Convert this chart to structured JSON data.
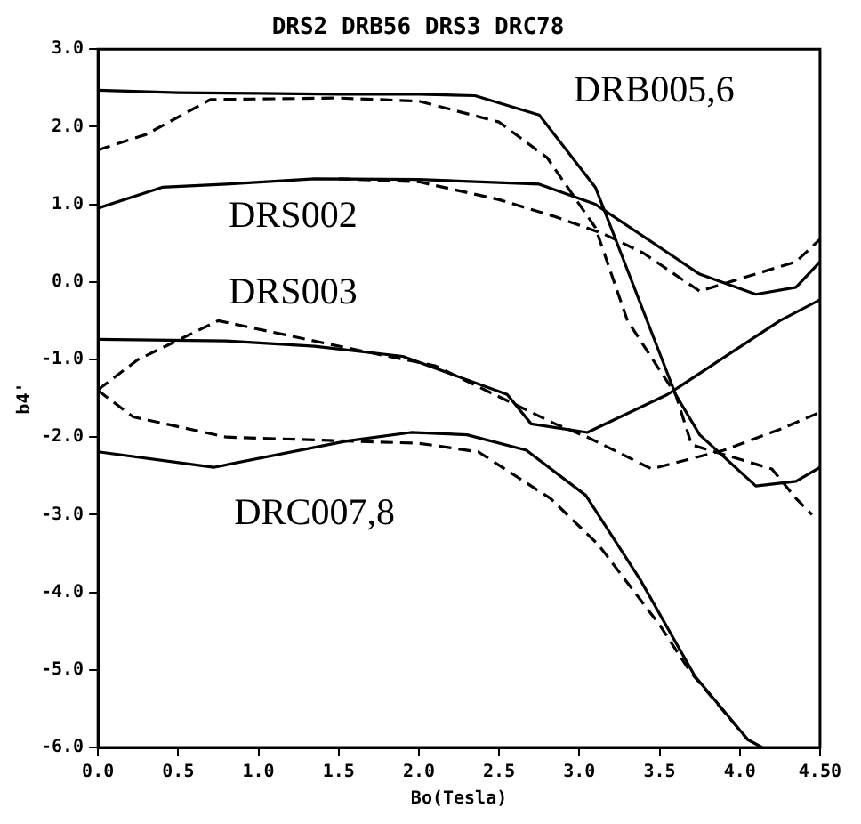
{
  "chart_data": {
    "type": "line",
    "title": "DRS2 DRB56 DRS3 DRC78",
    "xlabel": "Bo(Tesla)",
    "ylabel": "b4'",
    "xlim": [
      0,
      4.5
    ],
    "ylim": [
      -6,
      3
    ],
    "xticks": [
      {
        "value": 0,
        "label": "0.0"
      },
      {
        "value": 0.5,
        "label": "0.5"
      },
      {
        "value": 1,
        "label": "1.0"
      },
      {
        "value": 1.5,
        "label": "1.5"
      },
      {
        "value": 2,
        "label": "2.0"
      },
      {
        "value": 2.5,
        "label": "2.5"
      },
      {
        "value": 3,
        "label": "3.0"
      },
      {
        "value": 3.5,
        "label": "3.5"
      },
      {
        "value": 4,
        "label": "4.0"
      },
      {
        "value": 4.5,
        "label": "4.50"
      }
    ],
    "yticks": [
      {
        "value": 3,
        "label": "3.0"
      },
      {
        "value": 2,
        "label": "2.0"
      },
      {
        "value": 1,
        "label": "1.0"
      },
      {
        "value": 0,
        "label": "0.0"
      },
      {
        "value": -1,
        "label": "-1.0"
      },
      {
        "value": -2,
        "label": "-2.0"
      },
      {
        "value": -3,
        "label": "-3.0"
      },
      {
        "value": -4,
        "label": "-4.0"
      },
      {
        "value": -5,
        "label": "-5.0"
      },
      {
        "value": -6,
        "label": "-6.0"
      }
    ],
    "grid": false,
    "legend": false,
    "marker": "none",
    "series": [
      {
        "color": "#000000",
        "line_style": "solid",
        "x": [
          0,
          0.5,
          1,
          1.5,
          2,
          2.35,
          2.75,
          3.1,
          3.6,
          3.75,
          4.1,
          4.35,
          4.5
        ],
        "values": [
          2.47,
          2.44,
          2.43,
          2.42,
          2.42,
          2.4,
          2.15,
          1.22,
          -1.45,
          -1.97,
          -2.63,
          -2.57,
          -2.39
        ]
      },
      {
        "color": "#000000",
        "line_style": "dashed",
        "x": [
          0,
          0.3,
          0.7,
          1.5,
          2,
          2.5,
          2.8,
          3.1,
          3.3,
          3.6,
          3.7,
          4.2,
          4.35,
          4.45
        ],
        "values": [
          1.7,
          1.9,
          2.35,
          2.37,
          2.33,
          2.06,
          1.6,
          0.7,
          -0.5,
          -1.45,
          -2.1,
          -2.41,
          -2.79,
          -3
        ]
      },
      {
        "color": "#000000",
        "line_style": "solid",
        "x": [
          0,
          0.4,
          0.8,
          1.35,
          2,
          2.75,
          3.1,
          3.75,
          4.1,
          4.35,
          4.5
        ],
        "values": [
          0.95,
          1.22,
          1.26,
          1.33,
          1.32,
          1.26,
          1,
          0.1,
          -0.16,
          -0.07,
          0.26
        ]
      },
      {
        "color": "#000000",
        "line_style": "dashed",
        "x": [
          1.5,
          2,
          2.5,
          2.85,
          3.15,
          3.4,
          3.75,
          4,
          4.35,
          4.5
        ],
        "values": [
          1.33,
          1.29,
          1.06,
          0.84,
          0.62,
          0.37,
          -0.12,
          0.04,
          0.26,
          0.55
        ]
      },
      {
        "color": "#000000",
        "line_style": "solid",
        "x": [
          0,
          0.8,
          1.35,
          1.9,
          2.55,
          2.7,
          3.05,
          3.55,
          4.25,
          4.5
        ],
        "values": [
          -0.74,
          -0.76,
          -0.83,
          -0.96,
          -1.45,
          -1.83,
          -1.94,
          -1.45,
          -0.5,
          -0.23
        ]
      },
      {
        "color": "#000000",
        "line_style": "dashed",
        "x": [
          0,
          0.25,
          0.75,
          1.55,
          2.1,
          2.85,
          3.05,
          3.45,
          3.9,
          4.25,
          4.5
        ],
        "values": [
          -1.39,
          -1,
          -0.5,
          -0.85,
          -1.08,
          -1.83,
          -2,
          -2.41,
          -2.17,
          -1.9,
          -1.68
        ]
      },
      {
        "color": "#000000",
        "line_style": "solid",
        "x": [
          0,
          0.72,
          1.55,
          1.95,
          2.3,
          2.67,
          3.04,
          3.38,
          3.72,
          4.05,
          4.14
        ],
        "values": [
          -2.19,
          -2.39,
          -2.05,
          -1.94,
          -1.97,
          -2.17,
          -2.75,
          -3.84,
          -5.08,
          -5.9,
          -6
        ]
      },
      {
        "color": "#000000",
        "line_style": "dashed",
        "x": [
          0,
          0.22,
          0.8,
          1.55,
          2,
          2.37,
          2.82,
          3.12,
          3.5,
          3.69,
          4.05
        ],
        "values": [
          -1.4,
          -1.74,
          -2,
          -2.05,
          -2.08,
          -2.19,
          -2.79,
          -3.39,
          -4.42,
          -5.02,
          -5.9
        ]
      }
    ],
    "annotations": [
      "DRB005,6",
      "DRS002",
      "DRS003",
      "DRC007,8"
    ]
  }
}
